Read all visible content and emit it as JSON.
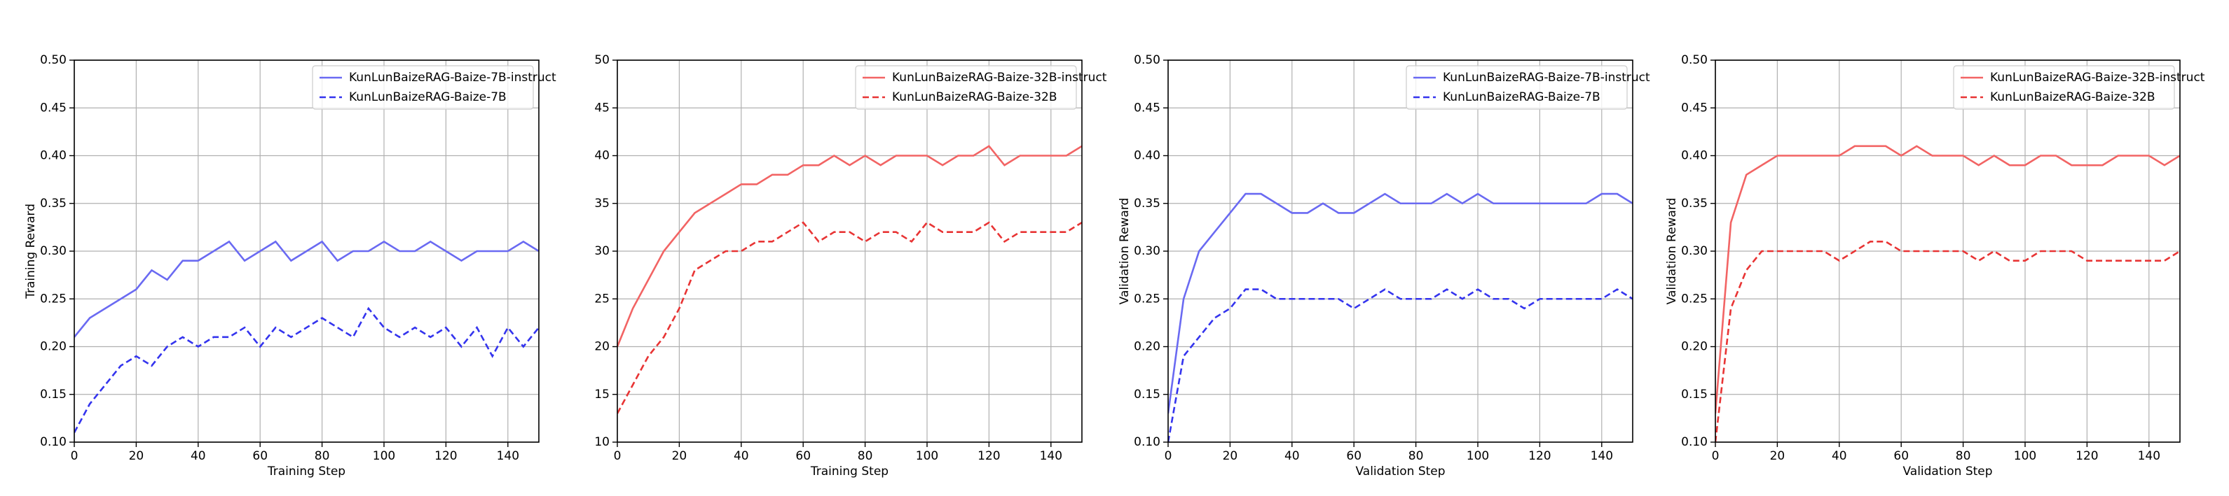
{
  "chart_data": [
    {
      "type": "line",
      "xlabel": "Training Step",
      "ylabel": "Training Reward",
      "x": [
        0,
        5,
        10,
        15,
        20,
        25,
        30,
        35,
        40,
        45,
        50,
        55,
        60,
        65,
        70,
        75,
        80,
        85,
        90,
        95,
        100,
        105,
        110,
        115,
        120,
        125,
        130,
        135,
        140,
        145,
        150
      ],
      "xlim": [
        0,
        150
      ],
      "xticks": [
        0,
        20,
        40,
        60,
        80,
        100,
        120,
        140
      ],
      "ylim": [
        0.1,
        0.5
      ],
      "yticks": [
        {
          "value": 0.1,
          "label": "0.10"
        },
        {
          "value": 0.15,
          "label": "0.15"
        },
        {
          "value": 0.2,
          "label": "0.20"
        },
        {
          "value": 0.25,
          "label": "0.25"
        },
        {
          "value": 0.3,
          "label": "0.30"
        },
        {
          "value": 0.35,
          "label": "0.35"
        },
        {
          "value": 0.4,
          "label": "0.40"
        },
        {
          "value": 0.45,
          "label": "0.45"
        },
        {
          "value": 0.5,
          "label": "0.50"
        }
      ],
      "grid": true,
      "legend": "upper right",
      "series": [
        {
          "name": "KunLunBaizeRAG-Baize-7B-instruct",
          "color": "#6a6af2",
          "linestyle": "solid",
          "values": [
            0.21,
            0.23,
            0.24,
            0.25,
            0.26,
            0.28,
            0.27,
            0.29,
            0.29,
            0.3,
            0.31,
            0.29,
            0.3,
            0.31,
            0.29,
            0.3,
            0.31,
            0.29,
            0.3,
            0.3,
            0.31,
            0.3,
            0.3,
            0.31,
            0.3,
            0.29,
            0.3,
            0.3,
            0.3,
            0.31,
            0.3
          ]
        },
        {
          "name": "KunLunBaizeRAG-Baize-7B",
          "color": "#3434ee",
          "linestyle": "dashed",
          "values": [
            0.11,
            0.14,
            0.16,
            0.18,
            0.19,
            0.18,
            0.2,
            0.21,
            0.2,
            0.21,
            0.21,
            0.22,
            0.2,
            0.22,
            0.21,
            0.22,
            0.23,
            0.22,
            0.21,
            0.24,
            0.22,
            0.21,
            0.22,
            0.21,
            0.22,
            0.2,
            0.22,
            0.19,
            0.22,
            0.2,
            0.22
          ]
        }
      ]
    },
    {
      "type": "line",
      "xlabel": "Training Step",
      "x": [
        0,
        5,
        10,
        15,
        20,
        25,
        30,
        35,
        40,
        45,
        50,
        55,
        60,
        65,
        70,
        75,
        80,
        85,
        90,
        95,
        100,
        105,
        110,
        115,
        120,
        125,
        130,
        135,
        140,
        145,
        150
      ],
      "xlim": [
        0,
        150
      ],
      "xticks": [
        0,
        20,
        40,
        60,
        80,
        100,
        120,
        140
      ],
      "ylim": [
        10,
        50
      ],
      "yticks": [
        10,
        15,
        20,
        25,
        30,
        35,
        40,
        45,
        50
      ],
      "grid": true,
      "legend": "upper right",
      "series": [
        {
          "name": "KunLunBaizeRAG-Baize-32B-instruct",
          "color": "#f26464",
          "linestyle": "solid",
          "values": [
            20,
            24,
            27,
            30,
            32,
            34,
            35,
            36,
            37,
            37,
            38,
            38,
            39,
            39,
            40,
            39,
            40,
            39,
            40,
            40,
            40,
            39,
            40,
            40,
            41,
            39,
            40,
            40,
            40,
            40,
            41
          ]
        },
        {
          "name": "KunLunBaizeRAG-Baize-32B",
          "color": "#e83434",
          "linestyle": "dashed",
          "values": [
            13,
            16,
            19,
            21,
            24,
            28,
            29,
            30,
            30,
            31,
            31,
            32,
            33,
            31,
            32,
            32,
            31,
            32,
            32,
            31,
            33,
            32,
            32,
            32,
            33,
            31,
            32,
            32,
            32,
            32,
            33
          ]
        }
      ]
    },
    {
      "type": "line",
      "xlabel": "Validation Step",
      "ylabel": "Validation Reward",
      "x": [
        0,
        5,
        10,
        15,
        20,
        25,
        30,
        35,
        40,
        45,
        50,
        55,
        60,
        65,
        70,
        75,
        80,
        85,
        90,
        95,
        100,
        105,
        110,
        115,
        120,
        125,
        130,
        135,
        140,
        145,
        150
      ],
      "xlim": [
        0,
        150
      ],
      "xticks": [
        0,
        20,
        40,
        60,
        80,
        100,
        120,
        140
      ],
      "ylim": [
        0.1,
        0.5
      ],
      "yticks": [
        {
          "value": 0.1,
          "label": "0.10"
        },
        {
          "value": 0.15,
          "label": "0.15"
        },
        {
          "value": 0.2,
          "label": "0.20"
        },
        {
          "value": 0.25,
          "label": "0.25"
        },
        {
          "value": 0.3,
          "label": "0.30"
        },
        {
          "value": 0.35,
          "label": "0.35"
        },
        {
          "value": 0.4,
          "label": "0.40"
        },
        {
          "value": 0.45,
          "label": "0.45"
        },
        {
          "value": 0.5,
          "label": "0.50"
        }
      ],
      "grid": true,
      "legend": "upper right",
      "series": [
        {
          "name": "KunLunBaizeRAG-Baize-7B-instruct",
          "color": "#6a6af2",
          "linestyle": "solid",
          "values": [
            0.13,
            0.25,
            0.3,
            0.32,
            0.34,
            0.36,
            0.36,
            0.35,
            0.34,
            0.34,
            0.35,
            0.34,
            0.34,
            0.35,
            0.36,
            0.35,
            0.35,
            0.35,
            0.36,
            0.35,
            0.36,
            0.35,
            0.35,
            0.35,
            0.35,
            0.35,
            0.35,
            0.35,
            0.36,
            0.36,
            0.35
          ]
        },
        {
          "name": "KunLunBaizeRAG-Baize-7B",
          "color": "#3434ee",
          "linestyle": "dashed",
          "values": [
            0.1,
            0.19,
            0.21,
            0.23,
            0.24,
            0.26,
            0.26,
            0.25,
            0.25,
            0.25,
            0.25,
            0.25,
            0.24,
            0.25,
            0.26,
            0.25,
            0.25,
            0.25,
            0.26,
            0.25,
            0.26,
            0.25,
            0.25,
            0.24,
            0.25,
            0.25,
            0.25,
            0.25,
            0.25,
            0.26,
            0.25
          ]
        }
      ]
    },
    {
      "type": "line",
      "xlabel": "Validation Step",
      "ylabel": "Validation Reward",
      "x": [
        0,
        5,
        10,
        15,
        20,
        25,
        30,
        35,
        40,
        45,
        50,
        55,
        60,
        65,
        70,
        75,
        80,
        85,
        90,
        95,
        100,
        105,
        110,
        115,
        120,
        125,
        130,
        135,
        140,
        145,
        150
      ],
      "xlim": [
        0,
        150
      ],
      "xticks": [
        0,
        20,
        40,
        60,
        80,
        100,
        120,
        140
      ],
      "ylim": [
        0.1,
        0.5
      ],
      "yticks": [
        {
          "value": 0.1,
          "label": "0.10"
        },
        {
          "value": 0.15,
          "label": "0.15"
        },
        {
          "value": 0.2,
          "label": "0.20"
        },
        {
          "value": 0.25,
          "label": "0.25"
        },
        {
          "value": 0.3,
          "label": "0.30"
        },
        {
          "value": 0.35,
          "label": "0.35"
        },
        {
          "value": 0.4,
          "label": "0.40"
        },
        {
          "value": 0.45,
          "label": "0.45"
        },
        {
          "value": 0.5,
          "label": "0.50"
        }
      ],
      "grid": true,
      "legend": "upper right",
      "series": [
        {
          "name": "KunLunBaizeRAG-Baize-32B-instruct",
          "color": "#f26464",
          "linestyle": "solid",
          "values": [
            0.13,
            0.33,
            0.38,
            0.39,
            0.4,
            0.4,
            0.4,
            0.4,
            0.4,
            0.41,
            0.41,
            0.41,
            0.4,
            0.41,
            0.4,
            0.4,
            0.4,
            0.39,
            0.4,
            0.39,
            0.39,
            0.4,
            0.4,
            0.39,
            0.39,
            0.39,
            0.4,
            0.4,
            0.4,
            0.39,
            0.4
          ]
        },
        {
          "name": "KunLunBaizeRAG-Baize-32B",
          "color": "#e83434",
          "linestyle": "dashed",
          "values": [
            0.1,
            0.24,
            0.28,
            0.3,
            0.3,
            0.3,
            0.3,
            0.3,
            0.29,
            0.3,
            0.31,
            0.31,
            0.3,
            0.3,
            0.3,
            0.3,
            0.3,
            0.29,
            0.3,
            0.29,
            0.29,
            0.3,
            0.3,
            0.3,
            0.29,
            0.29,
            0.29,
            0.29,
            0.29,
            0.29,
            0.3
          ]
        }
      ]
    }
  ]
}
